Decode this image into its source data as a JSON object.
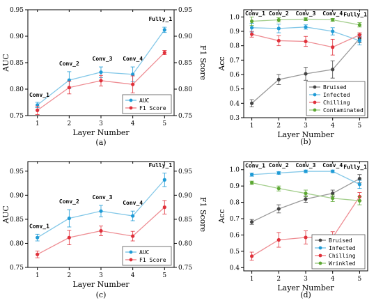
{
  "chart_data": [
    {
      "type": "line",
      "caption": "(a)",
      "xlabel": "Layer Number",
      "ylabel": "AUC",
      "y2label": "F1 Score",
      "x": [
        1,
        2,
        3,
        4,
        5
      ],
      "xticks": [
        "1",
        "2",
        "3",
        "4",
        "5"
      ],
      "ylim": [
        0.75,
        0.95
      ],
      "yticks": [
        "0.75",
        "0.80",
        "0.85",
        "0.90",
        "0.95"
      ],
      "y2ticks": [
        "0.75",
        "0.80",
        "0.85",
        "0.90",
        "0.95"
      ],
      "legend_position": "lower-right",
      "annotations": [
        "Conv_1",
        "Conv_2",
        "Conv_3",
        "Conv_4",
        "Fully_1"
      ],
      "series": [
        {
          "name": "AUC",
          "color": "#1f9bd6",
          "values": [
            0.77,
            0.817,
            0.832,
            0.828,
            0.912
          ],
          "errors": [
            0.005,
            0.016,
            0.01,
            0.014,
            0.005
          ]
        },
        {
          "name": "F1 Score",
          "color": "#e0303a",
          "values": [
            0.76,
            0.803,
            0.816,
            0.809,
            0.869
          ],
          "errors": [
            0.008,
            0.012,
            0.01,
            0.016,
            0.004
          ]
        }
      ]
    },
    {
      "type": "line",
      "caption": "(b)",
      "xlabel": "Layer Number",
      "ylabel": "Acc",
      "x": [
        1,
        2,
        3,
        4,
        5
      ],
      "xticks": [
        "1",
        "2",
        "3",
        "4",
        "5"
      ],
      "ylim": [
        0.3,
        1.05
      ],
      "yticks": [
        "0.3",
        "0.4",
        "0.5",
        "0.6",
        "0.7",
        "0.8",
        "0.9",
        "1.0"
      ],
      "legend_position": "lower-right",
      "annotations": [
        "Conv_1",
        "Conv_2",
        "Conv_3",
        "Conv_4",
        "Fully_1"
      ],
      "series": [
        {
          "name": "Bruised",
          "color": "#444444",
          "values": [
            0.4,
            0.565,
            0.605,
            0.635,
            0.85
          ],
          "errors": [
            0.025,
            0.035,
            0.045,
            0.06,
            0.03
          ]
        },
        {
          "name": "Infected",
          "color": "#1f9bd6",
          "values": [
            0.925,
            0.92,
            0.93,
            0.9,
            0.835
          ],
          "errors": [
            0.03,
            0.03,
            0.015,
            0.025,
            0.03
          ]
        },
        {
          "name": "Chilling",
          "color": "#e0303a",
          "values": [
            0.88,
            0.835,
            0.83,
            0.79,
            0.875
          ],
          "errors": [
            0.02,
            0.035,
            0.035,
            0.055,
            0.015
          ]
        },
        {
          "name": "Contaminated",
          "color": "#5ca832",
          "values": [
            0.97,
            0.98,
            0.985,
            0.98,
            0.945
          ],
          "errors": [
            0.03,
            0.015,
            0.01,
            0.01,
            0.015
          ]
        }
      ]
    },
    {
      "type": "line",
      "caption": "(c)",
      "xlabel": "Layer Number",
      "ylabel": "AUC",
      "y2label": "F1 Score",
      "x": [
        1,
        2,
        3,
        4,
        5
      ],
      "xticks": [
        "1",
        "2",
        "3",
        "4",
        "5"
      ],
      "ylim": [
        0.75,
        0.97
      ],
      "yticks": [
        "0.75",
        "0.80",
        "0.85",
        "0.90",
        "0.95"
      ],
      "y2ticks": [
        "0.75",
        "0.80",
        "0.85",
        "0.90",
        "0.95"
      ],
      "legend_position": "lower-right",
      "annotations": [
        "Conv_1",
        "Conv_2",
        "Conv_3",
        "Conv_4",
        "Fully_1"
      ],
      "series": [
        {
          "name": "AUC",
          "color": "#1f9bd6",
          "values": [
            0.812,
            0.852,
            0.867,
            0.857,
            0.932
          ],
          "errors": [
            0.007,
            0.018,
            0.012,
            0.01,
            0.014
          ]
        },
        {
          "name": "F1 Score",
          "color": "#e0303a",
          "values": [
            0.777,
            0.812,
            0.826,
            0.815,
            0.875
          ],
          "errors": [
            0.007,
            0.015,
            0.01,
            0.01,
            0.014
          ]
        }
      ]
    },
    {
      "type": "line",
      "caption": "(d)",
      "xlabel": "Layer Number",
      "ylabel": "Acc",
      "x": [
        1,
        2,
        3,
        4,
        5
      ],
      "xticks": [
        "1",
        "2",
        "3",
        "4",
        "5"
      ],
      "ylim": [
        0.38,
        1.05
      ],
      "yticks": [
        "0.4",
        "0.5",
        "0.6",
        "0.7",
        "0.8",
        "0.9",
        "1.0"
      ],
      "legend_position": "lower-right",
      "annotations": [
        "Conv_1",
        "Conv_2",
        "Conv_3",
        "Conv_4",
        "Fully_1"
      ],
      "series": [
        {
          "name": "Bruised",
          "color": "#444444",
          "values": [
            0.68,
            0.76,
            0.82,
            0.855,
            0.945
          ],
          "errors": [
            0.015,
            0.025,
            0.02,
            0.02,
            0.025
          ]
        },
        {
          "name": "Infected",
          "color": "#1f9bd6",
          "values": [
            0.97,
            0.98,
            0.99,
            0.99,
            0.91
          ],
          "errors": [
            0.01,
            0.008,
            0.008,
            0.008,
            0.025
          ]
        },
        {
          "name": "Chilling",
          "color": "#e0303a",
          "values": [
            0.47,
            0.57,
            0.585,
            0.585,
            0.835
          ],
          "errors": [
            0.025,
            0.045,
            0.04,
            0.035,
            0.025
          ]
        },
        {
          "name": "Wrinkled",
          "color": "#5ca832",
          "values": [
            0.92,
            0.885,
            0.855,
            0.825,
            0.81
          ],
          "errors": [
            0.01,
            0.015,
            0.02,
            0.02,
            0.025
          ]
        }
      ]
    }
  ]
}
